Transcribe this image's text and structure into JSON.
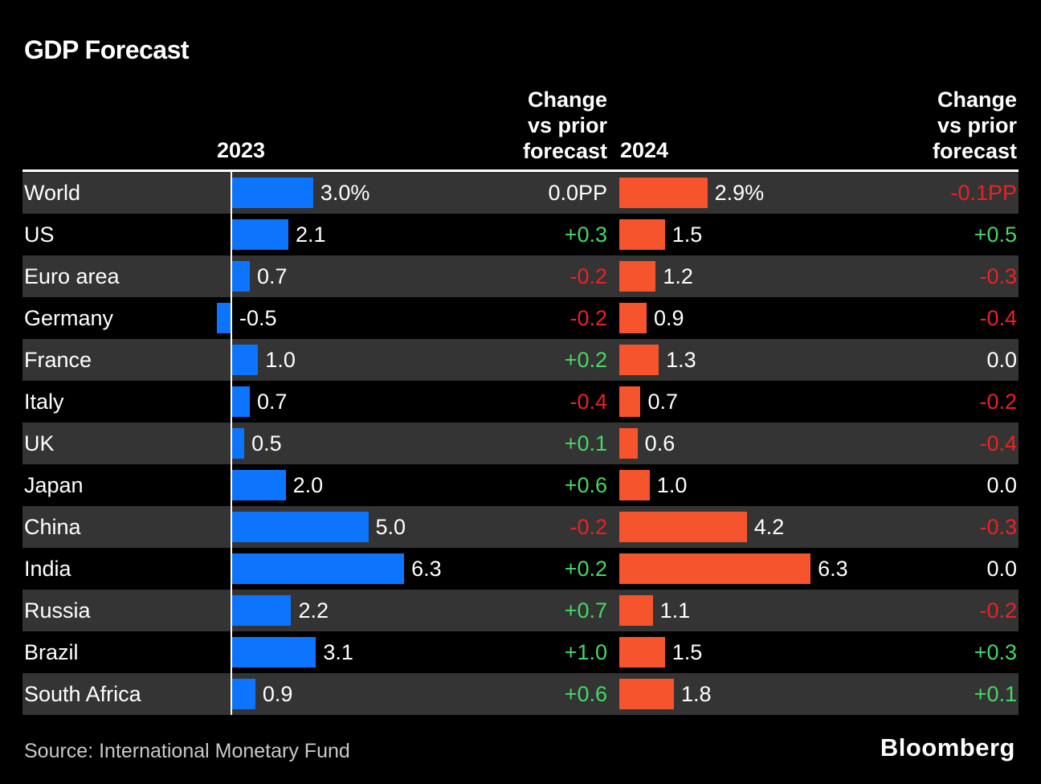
{
  "title": "GDP Forecast",
  "header": {
    "y2023": "2023",
    "y2024": "2024",
    "change1": [
      "Change",
      "vs prior",
      "forecast"
    ],
    "change2": [
      "Change",
      "vs prior",
      "forecast"
    ]
  },
  "rows": [
    {
      "label": "World",
      "gdp_2023": 3.0,
      "gdp_2023_label": "3.0%",
      "change_2023": "0.0PP",
      "gdp_2024": 2.9,
      "gdp_2024_label": "2.9%",
      "change_2024": "-0.1PP"
    },
    {
      "label": "US",
      "gdp_2023": 2.1,
      "gdp_2023_label": "2.1",
      "change_2023": "+0.3",
      "gdp_2024": 1.5,
      "gdp_2024_label": "1.5",
      "change_2024": "+0.5"
    },
    {
      "label": "Euro area",
      "gdp_2023": 0.7,
      "gdp_2023_label": "0.7",
      "change_2023": "-0.2",
      "gdp_2024": 1.2,
      "gdp_2024_label": "1.2",
      "change_2024": "-0.3"
    },
    {
      "label": "Germany",
      "gdp_2023": -0.5,
      "gdp_2023_label": "-0.5",
      "change_2023": "-0.2",
      "gdp_2024": 0.9,
      "gdp_2024_label": "0.9",
      "change_2024": "-0.4"
    },
    {
      "label": "France",
      "gdp_2023": 1.0,
      "gdp_2023_label": "1.0",
      "change_2023": "+0.2",
      "gdp_2024": 1.3,
      "gdp_2024_label": "1.3",
      "change_2024": "0.0"
    },
    {
      "label": "Italy",
      "gdp_2023": 0.7,
      "gdp_2023_label": "0.7",
      "change_2023": "-0.4",
      "gdp_2024": 0.7,
      "gdp_2024_label": "0.7",
      "change_2024": "-0.2"
    },
    {
      "label": "UK",
      "gdp_2023": 0.5,
      "gdp_2023_label": "0.5",
      "change_2023": "+0.1",
      "gdp_2024": 0.6,
      "gdp_2024_label": "0.6",
      "change_2024": "-0.4"
    },
    {
      "label": "Japan",
      "gdp_2023": 2.0,
      "gdp_2023_label": "2.0",
      "change_2023": "+0.6",
      "gdp_2024": 1.0,
      "gdp_2024_label": "1.0",
      "change_2024": "0.0"
    },
    {
      "label": "China",
      "gdp_2023": 5.0,
      "gdp_2023_label": "5.0",
      "change_2023": "-0.2",
      "gdp_2024": 4.2,
      "gdp_2024_label": "4.2",
      "change_2024": "-0.3"
    },
    {
      "label": "India",
      "gdp_2023": 6.3,
      "gdp_2023_label": "6.3",
      "change_2023": "+0.2",
      "gdp_2024": 6.3,
      "gdp_2024_label": "6.3",
      "change_2024": "0.0"
    },
    {
      "label": "Russia",
      "gdp_2023": 2.2,
      "gdp_2023_label": "2.2",
      "change_2023": "+0.7",
      "gdp_2024": 1.1,
      "gdp_2024_label": "1.1",
      "change_2024": "-0.2"
    },
    {
      "label": "Brazil",
      "gdp_2023": 3.1,
      "gdp_2023_label": "3.1",
      "change_2023": "+1.0",
      "gdp_2024": 1.5,
      "gdp_2024_label": "1.5",
      "change_2024": "+0.3"
    },
    {
      "label": "South Africa",
      "gdp_2023": 0.9,
      "gdp_2023_label": "0.9",
      "change_2023": "+0.6",
      "gdp_2024": 1.8,
      "gdp_2024_label": "1.8",
      "change_2024": "+0.1"
    }
  ],
  "footer": {
    "source": "Source: International Monetary Fund",
    "brand": "Bloomberg"
  },
  "colors": {
    "bg": "#000000",
    "row_alt": "#343434",
    "bar_blue": "#0d74fe",
    "bar_orange": "#f6542c",
    "positive_green": "#44da62",
    "negative_red": "#ed2124"
  },
  "chart_data": {
    "type": "bar",
    "orientation": "horizontal",
    "title": "GDP Forecast",
    "categories": [
      "World",
      "US",
      "Euro area",
      "Germany",
      "France",
      "Italy",
      "UK",
      "Japan",
      "China",
      "India",
      "Russia",
      "Brazil",
      "South Africa"
    ],
    "series": [
      {
        "name": "2023 GDP growth (%)",
        "values": [
          3.0,
          2.1,
          0.7,
          -0.5,
          1.0,
          0.7,
          0.5,
          2.0,
          5.0,
          6.3,
          2.2,
          3.1,
          0.9
        ]
      },
      {
        "name": "2023 change vs prior forecast (PP)",
        "values": [
          0.0,
          0.3,
          -0.2,
          -0.2,
          0.2,
          -0.4,
          0.1,
          0.6,
          -0.2,
          0.2,
          0.7,
          1.0,
          0.6
        ]
      },
      {
        "name": "2024 GDP growth (%)",
        "values": [
          2.9,
          1.5,
          1.2,
          0.9,
          1.3,
          0.7,
          0.6,
          1.0,
          4.2,
          6.3,
          1.1,
          1.5,
          1.8
        ]
      },
      {
        "name": "2024 change vs prior forecast (PP)",
        "values": [
          -0.1,
          0.5,
          -0.3,
          -0.4,
          0.0,
          -0.2,
          -0.4,
          0.0,
          -0.3,
          0.0,
          -0.2,
          0.3,
          0.1
        ]
      }
    ],
    "value_axis_max": 6.3,
    "grid": false,
    "legend_position": "none",
    "source": "Source: International Monetary Fund"
  }
}
